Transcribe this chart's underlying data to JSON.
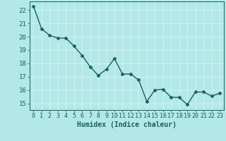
{
  "x": [
    0,
    1,
    2,
    3,
    4,
    5,
    6,
    7,
    8,
    9,
    10,
    11,
    12,
    13,
    14,
    15,
    16,
    17,
    18,
    19,
    20,
    21,
    22,
    23
  ],
  "y": [
    22.3,
    20.6,
    20.1,
    19.9,
    19.9,
    19.3,
    18.6,
    17.75,
    17.1,
    17.55,
    18.35,
    17.2,
    17.2,
    16.75,
    15.15,
    16.0,
    16.05,
    15.45,
    15.45,
    14.9,
    15.85,
    15.85,
    15.55,
    15.75
  ],
  "line_color": "#1a6060",
  "marker_color": "#1a6060",
  "bg_color": "#b2e8e8",
  "grid_color": "#d0f0f0",
  "xlabel": "Humidex (Indice chaleur)",
  "xlabel_fontsize": 7,
  "ylabel_ticks": [
    15,
    16,
    17,
    18,
    19,
    20,
    21,
    22
  ],
  "xlim": [
    -0.5,
    23.5
  ],
  "ylim": [
    14.5,
    22.65
  ],
  "tick_fontsize": 6.5,
  "linewidth": 1.0,
  "markersize": 2.5
}
